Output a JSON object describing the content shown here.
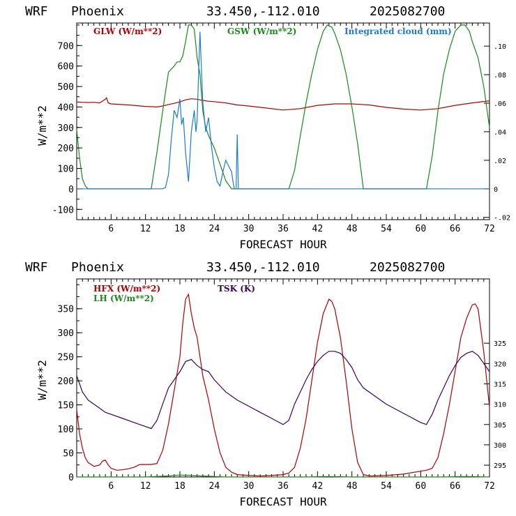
{
  "header": {
    "model": "WRF",
    "location": "Phoenix",
    "coords": "33.450,-112.010",
    "date": "2025082700"
  },
  "chart_data": [
    {
      "type": "line",
      "xlabel": "FORECAST HOUR",
      "ylabel": "W/m**2",
      "xlim": [
        0,
        72
      ],
      "ylim": [
        -150,
        810
      ],
      "y2lim": [
        -0.0216,
        0.1162
      ],
      "xticks": [
        "6",
        "12",
        "18",
        "24",
        "30",
        "36",
        "42",
        "48",
        "54",
        "60",
        "66",
        "72"
      ],
      "yticks": [
        "-100",
        "0",
        "100",
        "200",
        "300",
        "400",
        "500",
        "600",
        "700"
      ],
      "y2ticks": [
        "-.02",
        "0",
        ".02",
        ".04",
        ".06",
        ".08",
        ".10"
      ],
      "series": [
        {
          "name": "GLW (W/m**2)",
          "color": "#b00000",
          "axis": "left",
          "x": [
            0,
            1,
            2,
            3,
            4,
            5,
            5.2,
            5.5,
            6,
            9,
            12,
            14,
            15,
            16,
            17,
            18,
            19,
            20,
            21,
            22,
            23,
            24,
            26,
            28,
            30,
            33,
            36,
            39,
            42,
            45,
            48,
            51,
            54,
            57,
            60,
            63,
            66,
            69,
            72
          ],
          "y": [
            425,
            423,
            422,
            423,
            420,
            438,
            445,
            420,
            415,
            410,
            403,
            400,
            405,
            412,
            418,
            425,
            435,
            440,
            438,
            432,
            428,
            426,
            420,
            410,
            405,
            395,
            385,
            392,
            408,
            415,
            415,
            410,
            398,
            390,
            385,
            392,
            408,
            420,
            430
          ]
        },
        {
          "name": "GSW (W/m**2)",
          "color": "#1a8a1a",
          "axis": "left",
          "x": [
            0,
            0.5,
            1,
            1.5,
            2,
            13,
            14,
            15,
            16,
            17,
            17.5,
            18,
            18.5,
            19,
            19.5,
            20,
            20.5,
            21,
            21.5,
            22,
            22.5,
            23,
            24,
            25,
            26,
            27,
            37,
            38,
            39,
            40,
            41,
            42,
            43,
            43.7,
            44.5,
            45,
            46,
            47,
            48,
            49,
            50,
            61,
            62,
            63,
            64,
            65,
            66,
            67,
            67.7,
            68.5,
            69,
            70,
            71,
            72
          ],
          "y": [
            290,
            150,
            50,
            15,
            0,
            0,
            180,
            380,
            570,
            600,
            620,
            620,
            650,
            720,
            800,
            800,
            780,
            640,
            560,
            380,
            300,
            260,
            200,
            120,
            40,
            0,
            0,
            90,
            260,
            420,
            560,
            680,
            770,
            800,
            790,
            760,
            680,
            560,
            400,
            220,
            0,
            0,
            160,
            380,
            560,
            680,
            770,
            800,
            800,
            770,
            720,
            640,
            500,
            300
          ]
        },
        {
          "name": "Integrated cloud (mm)",
          "color": "#1a7ad8",
          "axis": "right",
          "x": [
            0,
            15,
            15.5,
            16,
            16.5,
            17,
            17.5,
            18,
            18.3,
            18.6,
            19,
            19.5,
            20,
            20.5,
            20.8,
            21,
            21.3,
            21.5,
            21.8,
            22,
            22.5,
            23,
            23.5,
            24,
            24.5,
            25,
            25.5,
            26,
            26.5,
            27,
            27.3,
            27.5,
            27.8,
            28,
            28.2,
            28.5,
            72
          ],
          "y": [
            0,
            0,
            0.001,
            0.01,
            0.035,
            0.055,
            0.05,
            0.063,
            0.045,
            0.05,
            0.025,
            0.005,
            0.04,
            0.055,
            0.04,
            0.048,
            0.085,
            0.11,
            0.08,
            0.06,
            0.04,
            0.05,
            0.03,
            0.015,
            0.005,
            0.002,
            0.012,
            0.02,
            0.016,
            0.012,
            0.004,
            0.0,
            0.0,
            0.038,
            0.0,
            0.0,
            0
          ]
        }
      ]
    },
    {
      "type": "line",
      "xlabel": "FORECAST HOUR",
      "ylabel": "W/m**2",
      "xlim": [
        0,
        72
      ],
      "ylim": [
        0,
        412
      ],
      "y2lim": [
        292.1,
        340.8
      ],
      "xticks": [
        "6",
        "12",
        "18",
        "24",
        "30",
        "36",
        "42",
        "48",
        "54",
        "60",
        "66",
        "72"
      ],
      "yticks": [
        "0",
        "50",
        "100",
        "150",
        "200",
        "250",
        "300",
        "350"
      ],
      "y2ticks": [
        "295",
        "300",
        "305",
        "310",
        "315",
        "320",
        "325"
      ],
      "series": [
        {
          "name": "HFX (W/m**2)",
          "color": "#b00000",
          "axis": "left",
          "x": [
            0,
            0.5,
            1,
            1.5,
            2,
            3,
            4,
            4.5,
            5,
            5.5,
            6,
            7,
            8,
            9,
            10,
            11,
            12,
            13,
            14,
            15,
            16,
            17,
            18,
            18.5,
            19,
            19.5,
            20,
            20.5,
            21,
            22,
            23,
            24,
            25,
            26,
            27,
            28,
            30,
            32,
            34,
            36,
            37,
            38,
            39,
            40,
            41,
            42,
            43,
            44,
            44.5,
            45,
            46,
            47,
            48,
            49,
            50,
            51,
            54,
            57,
            60,
            61,
            62,
            63,
            64,
            65,
            66,
            67,
            68,
            69,
            69.5,
            70,
            71,
            72
          ],
          "y": [
            140,
            90,
            60,
            40,
            30,
            22,
            25,
            33,
            35,
            25,
            18,
            14,
            15,
            17,
            20,
            26,
            26,
            26,
            28,
            55,
            110,
            180,
            250,
            320,
            370,
            380,
            340,
            310,
            290,
            210,
            160,
            100,
            50,
            20,
            10,
            5,
            3,
            2,
            3,
            5,
            8,
            20,
            60,
            120,
            200,
            280,
            340,
            370,
            365,
            350,
            290,
            200,
            100,
            30,
            5,
            2,
            3,
            6,
            12,
            14,
            18,
            40,
            90,
            150,
            220,
            290,
            330,
            358,
            360,
            350,
            260,
            145
          ]
        },
        {
          "name": "LH  (W/m**2)",
          "color": "#1a8a1a",
          "axis": "left",
          "x": [
            0,
            12,
            16,
            18,
            20,
            22,
            24,
            26,
            40,
            44,
            48,
            52,
            64,
            68,
            72
          ],
          "y": [
            0,
            0,
            2,
            4,
            3,
            2,
            1,
            0,
            0,
            1,
            0,
            0,
            0,
            1,
            0
          ]
        },
        {
          "name": "TSK (K)",
          "color": "#3a0060",
          "axis": "right",
          "x": [
            0,
            0.5,
            1,
            2,
            3,
            4,
            5,
            6,
            8,
            10,
            12,
            13,
            14,
            15,
            16,
            17,
            18,
            19,
            20,
            21,
            22,
            23,
            24,
            26,
            28,
            30,
            32,
            34,
            36,
            37,
            38,
            39,
            40,
            41,
            42,
            43,
            44,
            45,
            46,
            47,
            48,
            49,
            50,
            52,
            54,
            56,
            58,
            60,
            61,
            62,
            63,
            64,
            65,
            66,
            67,
            68,
            69,
            70,
            71,
            72
          ],
          "y": [
            317,
            315,
            313,
            311,
            310,
            309,
            308,
            307.5,
            306.5,
            305.5,
            304.5,
            304,
            306,
            310,
            314,
            316,
            318,
            320.5,
            321,
            319.5,
            318.5,
            318,
            316,
            313,
            311,
            309.5,
            308,
            306.5,
            305,
            306,
            310,
            313,
            316,
            318.5,
            320.5,
            322,
            323,
            323,
            322.5,
            321,
            319,
            316,
            314,
            312,
            310,
            308.5,
            307,
            305.5,
            305,
            307.5,
            311,
            314,
            317,
            319.5,
            321.5,
            322.5,
            323,
            322,
            320,
            318
          ]
        }
      ]
    }
  ]
}
